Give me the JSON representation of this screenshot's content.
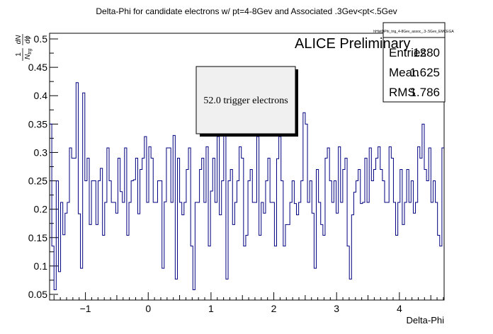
{
  "chart_data": {
    "type": "step",
    "title": "Delta-Phi for candidate electrons w/ pt=4-8Gev and Associated .3Gev<pt<.5Gev",
    "xlabel": "Delta-Phi",
    "ylabel": {
      "num": "1",
      "den_main": "N",
      "den_sub": "trg",
      "d_num": "dN",
      "d_den": "dϕ"
    },
    "watermark": "ALICE Preliminary",
    "annotation": "52.0 trigger electrons",
    "stats": {
      "name": "hHistDPhi_trig_4-8Gev_assoc_.3-.5Gev_EMCEGA",
      "rows": [
        {
          "label": "Entries",
          "value": "1280"
        },
        {
          "label": "Mean",
          "value": "1.625"
        },
        {
          "label": "RMS",
          "value": "1.786"
        }
      ]
    },
    "xlim": [
      -1.5708,
      4.7124
    ],
    "ylim": [
      0.04,
      0.51
    ],
    "xticks": [
      -1,
      0,
      1,
      2,
      3,
      4
    ],
    "yticks": [
      0.05,
      0.1,
      0.15,
      0.2,
      0.25,
      0.3,
      0.35,
      0.4,
      0.45,
      0.5
    ],
    "ytick_labels": [
      "0.05",
      "0.1",
      "0.15",
      "0.2",
      "0.25",
      "0.3",
      "0.35",
      "0.4",
      "0.45",
      "0.5"
    ],
    "line_color": "#000080",
    "values": [
      0.35,
      0.135,
      0.058,
      0.25,
      0.09,
      0.212,
      0.155,
      0.193,
      0.212,
      0.308,
      0.29,
      0.29,
      0.423,
      0.192,
      0.096,
      0.405,
      0.25,
      0.29,
      0.173,
      0.25,
      0.25,
      0.173,
      0.25,
      0.272,
      0.154,
      0.212,
      0.308,
      0.25,
      0.212,
      0.212,
      0.193,
      0.29,
      0.231,
      0.212,
      0.308,
      0.154,
      0.212,
      0.25,
      0.252,
      0.29,
      0.192,
      0.27,
      0.29,
      0.328,
      0.212,
      0.31,
      0.29,
      0.212,
      0.212,
      0.25,
      0.25,
      0.096,
      0.213,
      0.308,
      0.308,
      0.212,
      0.33,
      0.077,
      0.29,
      0.212,
      0.19,
      0.212,
      0.27,
      0.308,
      0.135,
      0.058,
      0.212,
      0.212,
      0.27,
      0.29,
      0.212,
      0.31,
      0.135,
      0.232,
      0.29,
      0.212,
      0.328,
      0.19,
      0.25,
      0.33,
      0.077,
      0.25,
      0.27,
      0.173,
      0.212,
      0.25,
      0.31,
      0.29,
      0.135,
      0.154,
      0.25,
      0.27,
      0.212,
      0.212,
      0.328,
      0.154,
      0.212,
      0.193,
      0.25,
      0.29,
      0.212,
      0.212,
      0.135,
      0.289,
      0.328,
      0.25,
      0.135,
      0.173,
      0.173,
      0.212,
      0.25,
      0.21,
      0.19,
      0.212,
      0.25,
      0.37,
      0.35,
      0.212,
      0.25,
      0.193,
      0.096,
      0.27,
      0.212,
      0.173,
      0.154,
      0.29,
      0.308,
      0.25,
      0.212,
      0.25,
      0.193,
      0.31,
      0.212,
      0.27,
      0.29,
      0.135,
      0.077,
      0.19,
      0.23,
      0.25,
      0.27,
      0.21,
      0.212,
      0.29,
      0.212,
      0.308,
      0.25,
      0.27,
      0.29,
      0.31,
      0.27,
      0.25,
      0.212,
      0.212,
      0.31,
      0.29,
      0.212,
      0.154,
      0.212,
      0.27,
      0.173,
      0.212,
      0.27,
      0.212,
      0.25,
      0.193,
      0.212,
      0.31,
      0.29,
      0.35,
      0.27,
      0.25,
      0.308,
      0.212,
      0.25,
      0.212,
      0.154,
      0.135,
      0.308
    ]
  }
}
